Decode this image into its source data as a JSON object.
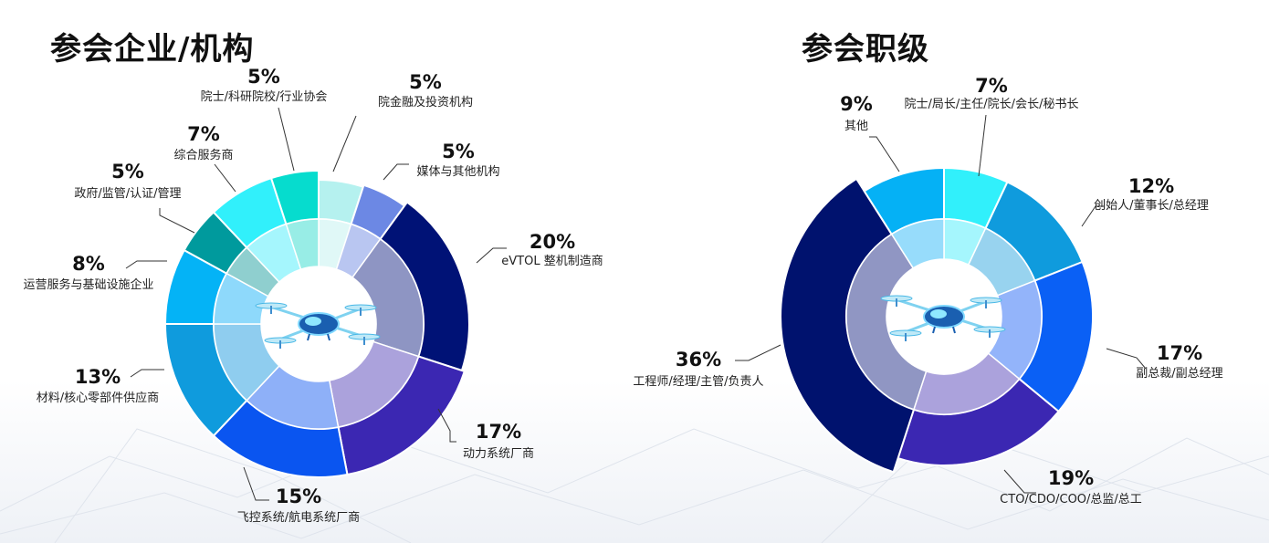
{
  "charts": [
    {
      "title": "参会企业/机构",
      "chart_data": {
        "type": "pie",
        "categories": [
          "院金融及投资机构",
          "媒体与其他机构",
          "eVTOL 整机制造商",
          "动力系统厂商",
          "飞控系统/航电系统厂商",
          "材料/核心零部件供应商",
          "运营服务与基础设施企业",
          "政府/监管/认证/管理",
          "综合服务商",
          "院士/科研院校/行业协会"
        ],
        "values": [
          5,
          5,
          20,
          17,
          15,
          13,
          8,
          5,
          7,
          5
        ],
        "value_labels": [
          "5%",
          "5%",
          "20%",
          "17%",
          "15%",
          "13%",
          "8%",
          "5%",
          "7%",
          "5%"
        ],
        "colors": [
          "#b5f1ef",
          "#6c88e4",
          "#001276",
          "#3b27b2",
          "#0a55f0",
          "#0f9bdd",
          "#04b3f6",
          "#009a9d",
          "#31f0fb",
          "#06dcce"
        ],
        "inner_colors": [
          "#e0f8f7",
          "#b9c6f1",
          "#8e95c3",
          "#aba2dc",
          "#8eb0f8",
          "#8fcdef",
          "#8ed9fb",
          "#8fcfcf",
          "#a5f6fd",
          "#98ede6"
        ]
      }
    },
    {
      "title": "参会职级",
      "chart_data": {
        "type": "pie",
        "categories": [
          "院士/局长/主任/院长/会长/秘书长",
          "创始人/董事长/总经理",
          "副总裁/副总经理",
          "CTO/CDO/COO/总监/总工",
          "工程师/经理/主管/负责人",
          "其他"
        ],
        "values": [
          7,
          12,
          17,
          19,
          36,
          9
        ],
        "value_labels": [
          "7%",
          "12%",
          "17%",
          "19%",
          "36%",
          "9%"
        ],
        "colors": [
          "#31f0fb",
          "#0f9bdd",
          "#0a60f5",
          "#3b27b2",
          "#00126e",
          "#05b1f5"
        ],
        "inner_colors": [
          "#a5f6fd",
          "#98d3ef",
          "#93b4fa",
          "#aba2dc",
          "#9096c3",
          "#97dcfb"
        ]
      }
    }
  ],
  "icons": {
    "center": "drone-icon"
  }
}
